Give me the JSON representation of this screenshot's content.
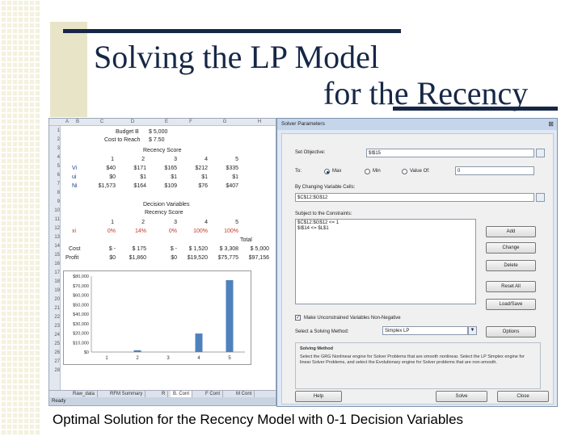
{
  "slide": {
    "title_line1": "Solving the LP Model",
    "title_line2": "for the Recency",
    "caption": "Optimal Solution for the Recency Model with 0-1 Decision Variables"
  },
  "excel": {
    "columns": [
      "A",
      "B",
      "C",
      "D",
      "E",
      "F",
      "G",
      "H"
    ],
    "rows": [
      "1",
      "2",
      "3",
      "4",
      "5",
      "6",
      "7",
      "8",
      "9",
      "10",
      "11",
      "12",
      "13",
      "14",
      "15",
      "16",
      "17",
      "18",
      "19",
      "20",
      "21",
      "22",
      "23",
      "24",
      "25",
      "26",
      "27",
      "28"
    ],
    "budget_label": "Budget B",
    "budget_value": "$ 5,000",
    "cost_label": "Cost to Reach",
    "cost_value": "$ 7.50",
    "recency_score_header": "Recency Score",
    "scores": [
      "1",
      "2",
      "3",
      "4",
      "5"
    ],
    "param_rows": [
      {
        "label": "Vi",
        "values": [
          "$40",
          "$171",
          "$165",
          "$212",
          "$335"
        ]
      },
      {
        "label": "ui",
        "values": [
          "$0",
          "$1",
          "$1",
          "$1",
          "$1"
        ]
      },
      {
        "label": "Ni",
        "values": [
          "$1,573",
          "$164",
          "$109",
          "$76",
          "$407"
        ]
      }
    ],
    "decision_header": "Decision Variables",
    "decision_score_header": "Recency Score",
    "xi_label": "xi",
    "xi_values": [
      "0%",
      "14%",
      "0%",
      "100%",
      "100%"
    ],
    "total_label": "Total",
    "cost_row_label": "Cost",
    "cost_row_values": [
      "$ -",
      "$ 175",
      "$ -",
      "$ 1,520",
      "$ 3,308",
      "$ 5,000"
    ],
    "profit_row_label": "Profit",
    "profit_row_values": [
      "$0",
      "$1,860",
      "$0",
      "$19,520",
      "$75,775",
      "$97,156"
    ],
    "sheet_tabs": [
      "Raw_data",
      "RFM Summary",
      "R",
      "B. Cont",
      "F Cont",
      "M Cont"
    ],
    "status": "Ready"
  },
  "chart_data": {
    "type": "bar",
    "categories": [
      "1",
      "2",
      "3",
      "4",
      "5"
    ],
    "values": [
      0,
      1860,
      0,
      19520,
      75775
    ],
    "ylim": [
      0,
      80000
    ],
    "yticks": [
      "$80,000",
      "$70,000",
      "$60,000",
      "$50,000",
      "$40,000",
      "$30,000",
      "$20,000",
      "$10,000",
      "$0"
    ],
    "bar_color": "#4f81bd",
    "grid": false
  },
  "solver": {
    "title": "Solver Parameters",
    "close": "⊠",
    "set_objective_label": "Set Objective:",
    "objective_value": "$I$15",
    "to_label": "To:",
    "max_label": "Max",
    "min_label": "Min",
    "value_of_label": "Value Of:",
    "value_of_value": "0",
    "changing_label": "By Changing Variable Cells:",
    "changing_value": "$C$12:$G$12",
    "constraints_label": "Subject to the Constraints:",
    "constraints": [
      "$C$12:$G$12 <= 1",
      "$I$14 <= $L$1"
    ],
    "add_button": "Add",
    "change_button": "Change",
    "delete_button": "Delete",
    "reset_button": "Reset All",
    "load_button": "Load/Save",
    "nonneg_label": "Make Unconstrained Variables Non-Negative",
    "method_label": "Select a Solving Method:",
    "method_value": "Simplex LP",
    "options_button": "Options",
    "solving_method_title": "Solving Method",
    "solving_method_text": "Select the GRG Nonlinear engine for Solver Problems that are smooth nonlinear. Select the LP Simplex engine for linear Solver Problems, and select the Evolutionary engine for Solver problems that are non-smooth.",
    "help_button": "Help",
    "solve_button": "Solve",
    "close_button": "Close"
  }
}
